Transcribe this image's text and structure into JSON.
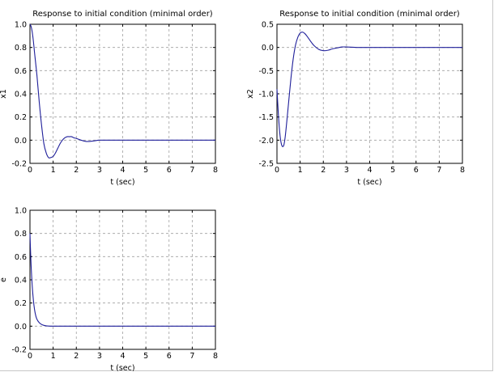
{
  "colors": {
    "line": "#1f1f9a",
    "grid": "#a0a0a0",
    "axis": "#000000",
    "frame": "#c8c8c8"
  },
  "chart_data": [
    {
      "type": "line",
      "title": "Response to initial condition (minimal order)",
      "xlabel": "t (sec)",
      "ylabel": "x1",
      "xlim": [
        0,
        8
      ],
      "ylim": [
        -0.2,
        1.0
      ],
      "xticks": [
        "0",
        "1",
        "2",
        "3",
        "4",
        "5",
        "6",
        "7",
        "8"
      ],
      "yticks": [
        "-0.2",
        "0.0",
        "0.2",
        "0.4",
        "0.6",
        "0.8",
        "1.0"
      ],
      "grid": true,
      "series": [
        {
          "x": [
            0,
            0.05,
            0.1,
            0.15,
            0.2,
            0.3,
            0.4,
            0.5,
            0.6,
            0.7,
            0.8,
            0.9,
            1.0,
            1.1,
            1.2,
            1.3,
            1.4,
            1.5,
            1.6,
            1.7,
            1.8,
            1.9,
            2.0,
            2.2,
            2.4,
            2.6,
            2.8,
            3.0,
            3.5,
            4,
            5,
            6,
            7,
            8
          ],
          "y": [
            1.0,
            0.98,
            0.93,
            0.85,
            0.75,
            0.56,
            0.33,
            0.13,
            -0.03,
            -0.11,
            -0.15,
            -0.15,
            -0.14,
            -0.11,
            -0.07,
            -0.03,
            0.0,
            0.02,
            0.03,
            0.03,
            0.03,
            0.02,
            0.015,
            0.0,
            -0.01,
            -0.01,
            -0.005,
            0.0,
            0.0,
            0.0,
            0.0,
            0.0,
            0.0,
            0.0
          ]
        }
      ]
    },
    {
      "type": "line",
      "title": "Response to initial condition (minimal order)",
      "xlabel": "t (sec)",
      "ylabel": "x2",
      "xlim": [
        0,
        8
      ],
      "ylim": [
        -2.5,
        0.5
      ],
      "xticks": [
        "0",
        "1",
        "2",
        "3",
        "4",
        "5",
        "6",
        "7",
        "8"
      ],
      "yticks": [
        "-2.5",
        "-2.0",
        "-1.5",
        "-1.0",
        "-0.5",
        "0.0",
        "0.5"
      ],
      "grid": true,
      "series": [
        {
          "x": [
            0,
            0.05,
            0.1,
            0.15,
            0.2,
            0.25,
            0.3,
            0.35,
            0.4,
            0.5,
            0.6,
            0.7,
            0.8,
            0.9,
            1.0,
            1.1,
            1.2,
            1.3,
            1.4,
            1.5,
            1.6,
            1.8,
            2.0,
            2.2,
            2.4,
            2.6,
            2.8,
            3.0,
            3.5,
            4,
            5,
            6,
            7,
            8
          ],
          "y": [
            -0.9,
            -1.35,
            -1.72,
            -1.97,
            -2.1,
            -2.14,
            -2.1,
            -1.95,
            -1.72,
            -1.2,
            -0.68,
            -0.25,
            0.05,
            0.22,
            0.31,
            0.33,
            0.3,
            0.24,
            0.17,
            0.1,
            0.04,
            -0.04,
            -0.07,
            -0.06,
            -0.03,
            -0.01,
            0.01,
            0.01,
            0.0,
            0.0,
            0.0,
            0.0,
            0.0,
            0.0
          ]
        }
      ]
    },
    {
      "type": "line",
      "title": "",
      "xlabel": "t (sec)",
      "ylabel": "e",
      "xlim": [
        0,
        8
      ],
      "ylim": [
        -0.2,
        1.0
      ],
      "xticks": [
        "0",
        "1",
        "2",
        "3",
        "4",
        "5",
        "6",
        "7",
        "8"
      ],
      "yticks": [
        "-0.2",
        "0.0",
        "0.2",
        "0.4",
        "0.6",
        "0.8",
        "1.0"
      ],
      "grid": true,
      "series": [
        {
          "x": [
            0,
            0.03,
            0.06,
            0.1,
            0.15,
            0.2,
            0.25,
            0.3,
            0.4,
            0.5,
            0.6,
            0.7,
            0.8,
            1.0,
            1.5,
            2,
            3,
            4,
            5,
            6,
            7,
            8
          ],
          "y": [
            0.8,
            0.62,
            0.48,
            0.34,
            0.22,
            0.14,
            0.09,
            0.06,
            0.03,
            0.015,
            0.007,
            0.003,
            0.001,
            0.0,
            0.0,
            0.0,
            0.0,
            0.0,
            0.0,
            0.0,
            0.0,
            0.0
          ]
        }
      ]
    }
  ]
}
